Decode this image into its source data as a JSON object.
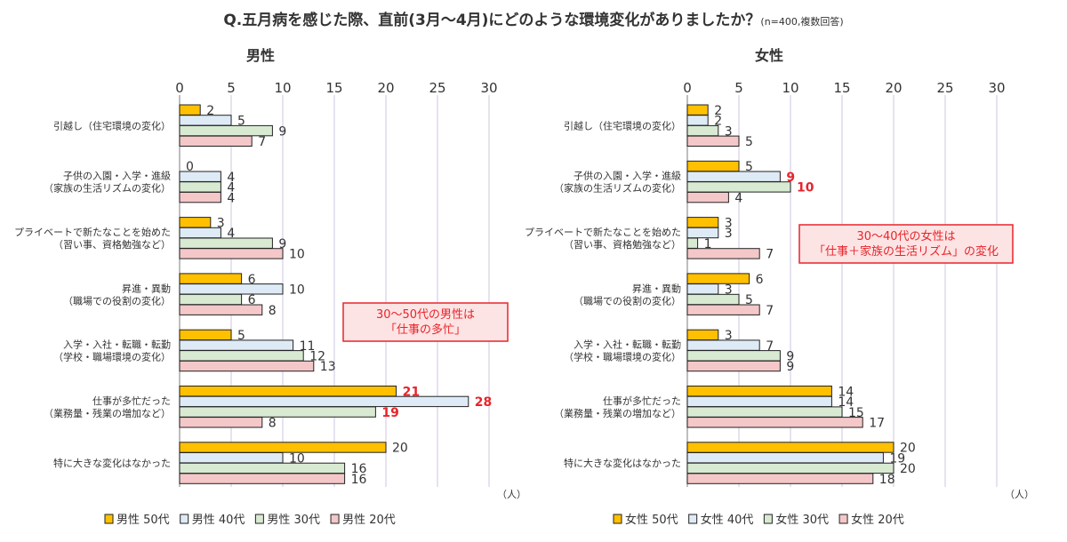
{
  "title": "Q.五月病を感じた際、直前(3月～4月)にどのような環境変化がありましたか？",
  "title_note": "(n=400,複数回答)",
  "colors": {
    "50s": "#FFC000",
    "40s": "#DEEBF7",
    "30s": "#D9EAD3",
    "20s": "#F4C7C8",
    "highlight": "#E8242B",
    "callout_bg": "#FDE4E4"
  },
  "chart_data": [
    {
      "type": "bar",
      "title": "男性",
      "unit": "（人）",
      "xlim": [
        0,
        30
      ],
      "ticks": [
        0,
        5,
        10,
        15,
        20,
        25,
        30
      ],
      "categories": [
        [
          "引越し（住宅環境の変化）"
        ],
        [
          "子供の入園・入学・進級",
          "（家族の生活リズムの変化）"
        ],
        [
          "プライベートで新たなことを始めた",
          "（習い事、資格勉強など）"
        ],
        [
          "昇進・異動",
          "（職場での役割の変化）"
        ],
        [
          "入学・入社・転職・転勤",
          "（学校・職場環境の変化）"
        ],
        [
          "仕事が多忙だった",
          "（業務量・残業の増加など）"
        ],
        [
          "特に大きな変化はなかった"
        ]
      ],
      "series": [
        {
          "name": "男性 50代",
          "values": [
            2,
            0,
            3,
            6,
            5,
            21,
            20
          ]
        },
        {
          "name": "男性 40代",
          "values": [
            5,
            4,
            4,
            10,
            11,
            28,
            10
          ]
        },
        {
          "name": "男性 30代",
          "values": [
            9,
            4,
            9,
            6,
            12,
            19,
            16
          ]
        },
        {
          "name": "男性 20代",
          "values": [
            7,
            4,
            10,
            8,
            13,
            8,
            16
          ]
        }
      ],
      "highlights": [
        [
          5,
          0
        ],
        [
          5,
          1
        ],
        [
          5,
          2
        ]
      ],
      "callout": [
        "30～50代の男性は",
        "「仕事の多忙」"
      ]
    },
    {
      "type": "bar",
      "title": "女性",
      "unit": "（人）",
      "xlim": [
        0,
        30
      ],
      "ticks": [
        0,
        5,
        10,
        15,
        20,
        25,
        30
      ],
      "categories": [
        [
          "引越し（住宅環境の変化）"
        ],
        [
          "子供の入園・入学・進級",
          "（家族の生活リズムの変化）"
        ],
        [
          "プライベートで新たなことを始めた",
          "（習い事、資格勉強など）"
        ],
        [
          "昇進・異動",
          "（職場での役割の変化）"
        ],
        [
          "入学・入社・転職・転勤",
          "（学校・職場環境の変化）"
        ],
        [
          "仕事が多忙だった",
          "（業務量・残業の増加など）"
        ],
        [
          "特に大きな変化はなかった"
        ]
      ],
      "series": [
        {
          "name": "女性 50代",
          "values": [
            2,
            5,
            3,
            6,
            3,
            14,
            20
          ]
        },
        {
          "name": "女性 40代",
          "values": [
            2,
            9,
            3,
            3,
            7,
            14,
            19
          ]
        },
        {
          "name": "女性 30代",
          "values": [
            3,
            10,
            1,
            5,
            9,
            15,
            20
          ]
        },
        {
          "name": "女性 20代",
          "values": [
            5,
            4,
            7,
            7,
            9,
            17,
            18
          ]
        }
      ],
      "highlights": [
        [
          1,
          1
        ],
        [
          1,
          2
        ]
      ],
      "callout": [
        "30～40代の女性は",
        "「仕事＋家族の生活リズム」の変化"
      ]
    }
  ]
}
